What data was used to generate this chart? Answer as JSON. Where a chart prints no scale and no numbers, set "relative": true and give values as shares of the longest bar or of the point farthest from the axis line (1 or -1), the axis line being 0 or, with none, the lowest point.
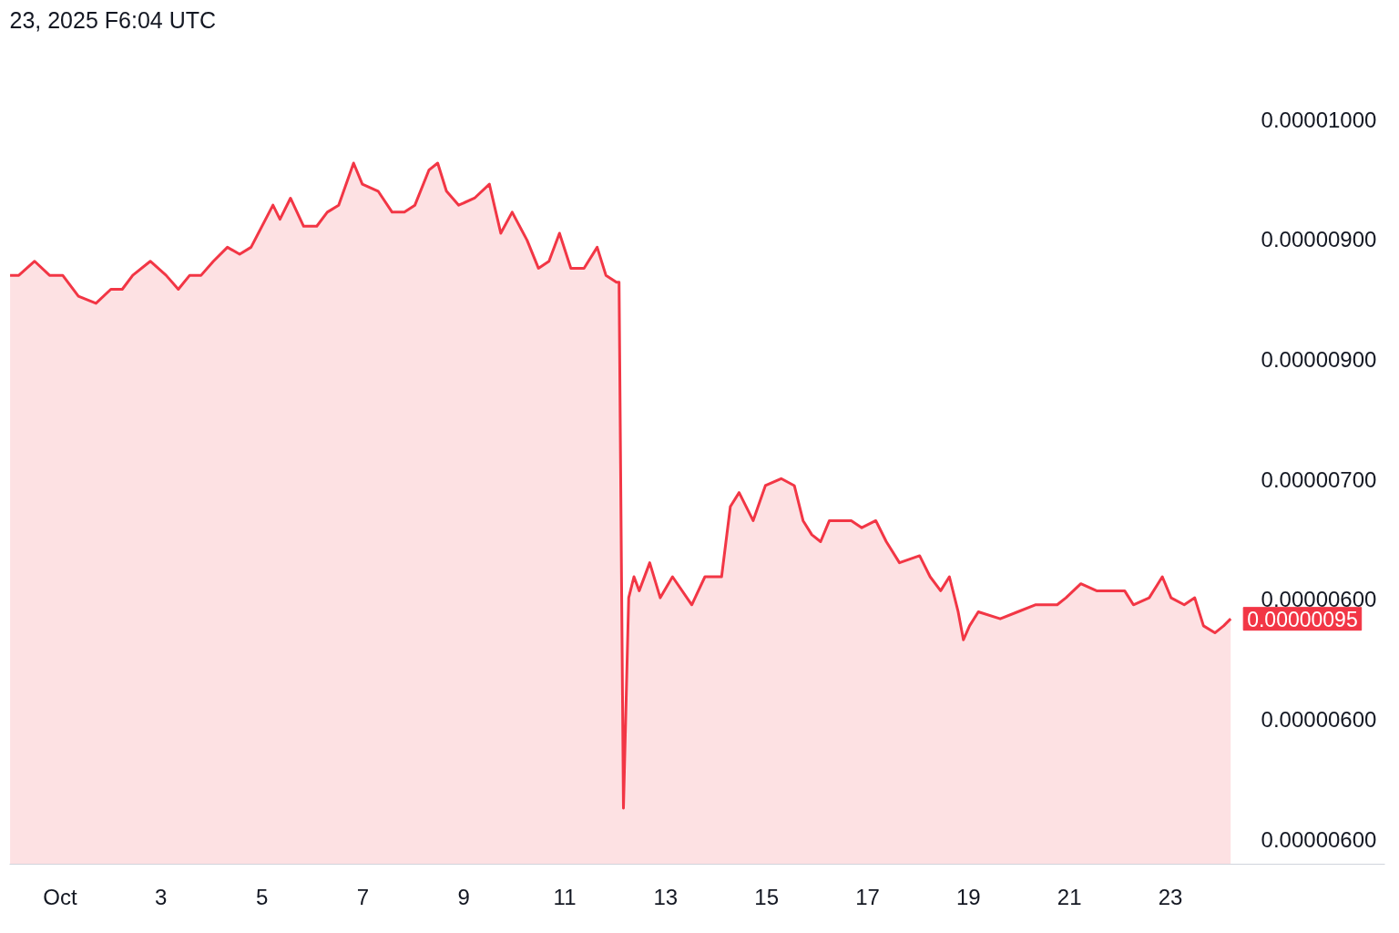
{
  "chart_data": {
    "type": "area",
    "relative": true,
    "title": "23, 2025 F6:04 UTC",
    "x": [
      "2025-09-30T00:15",
      "2025-09-30T04:25",
      "2025-09-30T11:55",
      "2025-09-30T19:00",
      "2025-10-01T01:15",
      "2025-10-01T08:45",
      "2025-10-01T17:05",
      "2025-10-02T00:10",
      "2025-10-02T05:35",
      "2025-10-02T10:35",
      "2025-10-02T18:55",
      "2025-10-03T02:25",
      "2025-10-03T08:15",
      "2025-10-03T13:40",
      "2025-10-03T19:05",
      "2025-10-04T00:55",
      "2025-10-04T07:35",
      "2025-10-04T13:25",
      "2025-10-04T18:50",
      "2025-10-05T05:15",
      "2025-10-05T08:35",
      "2025-10-05T13:35",
      "2025-10-05T19:50",
      "2025-10-06T02:05",
      "2025-10-06T07:05",
      "2025-10-06T12:30",
      "2025-10-06T19:35",
      "2025-10-06T23:45",
      "2025-10-07T07:15",
      "2025-10-07T13:55",
      "2025-10-07T19:45",
      "2025-10-08T00:45",
      "2025-10-08T07:25",
      "2025-10-08T11:35",
      "2025-10-08T15:45",
      "2025-10-08T21:35",
      "2025-10-09T05:05",
      "2025-10-09T12:10",
      "2025-10-09T17:35",
      "2025-10-09T23:00",
      "2025-10-10T06:05",
      "2025-10-10T11:30",
      "2025-10-10T16:30",
      "2025-10-10T21:30",
      "2025-10-11T02:55",
      "2025-10-11T09:10",
      "2025-10-11T15:25",
      "2025-10-11T19:35",
      "2025-10-12T00:35",
      "2025-10-12T01:50",
      "2025-10-12T03:55",
      "2025-10-12T06:25",
      "2025-10-12T08:55",
      "2025-10-12T11:25",
      "2025-10-12T16:25",
      "2025-10-12T21:25",
      "2025-10-13T03:15",
      "2025-10-13T12:25",
      "2025-10-13T18:40",
      "2025-10-14T02:35",
      "2025-10-14T06:45",
      "2025-10-14T10:55",
      "2025-10-14T17:35",
      "2025-10-14T23:25",
      "2025-10-15T06:55",
      "2025-10-15T13:10",
      "2025-10-15T17:20",
      "2025-10-15T21:30",
      "2025-10-16T01:40",
      "2025-10-16T05:50",
      "2025-10-16T11:15",
      "2025-10-16T16:15",
      "2025-10-16T21:15",
      "2025-10-17T03:55",
      "2025-10-17T08:55",
      "2025-10-17T15:10",
      "2025-10-18T00:45",
      "2025-10-18T05:45",
      "2025-10-18T10:45",
      "2025-10-18T14:55",
      "2025-10-18T19:05",
      "2025-10-18T21:35",
      "2025-10-19T00:30",
      "2025-10-19T04:40",
      "2025-10-19T15:05",
      "2025-10-19T23:25",
      "2025-10-20T07:45",
      "2025-10-20T18:10",
      "2025-10-20T22:20",
      "2025-10-21T05:25",
      "2025-10-21T12:55",
      "2025-10-21T21:15",
      "2025-10-22T02:15",
      "2025-10-22T06:25",
      "2025-10-22T13:55",
      "2025-10-22T18:05",
      "2025-10-22T20:10",
      "2025-10-23T00:20",
      "2025-10-23T06:35",
      "2025-10-23T11:35",
      "2025-10-23T15:45",
      "2025-10-23T21:10",
      "2025-10-24T01:20",
      "2025-10-24T04:40"
    ],
    "series": [
      {
        "color": "#f23645",
        "values": [
          0.84,
          0.84,
          0.86,
          0.84,
          0.84,
          0.81,
          0.8,
          0.82,
          0.82,
          0.84,
          0.86,
          0.84,
          0.82,
          0.84,
          0.84,
          0.86,
          0.88,
          0.87,
          0.88,
          0.94,
          0.92,
          0.95,
          0.91,
          0.91,
          0.93,
          0.94,
          1,
          0.97,
          0.96,
          0.93,
          0.93,
          0.94,
          0.99,
          1,
          0.96,
          0.94,
          0.95,
          0.97,
          0.9,
          0.93,
          0.89,
          0.85,
          0.86,
          0.9,
          0.85,
          0.85,
          0.88,
          0.84,
          0.83,
          0.83,
          0.08,
          0.38,
          0.41,
          0.39,
          0.43,
          0.38,
          0.41,
          0.37,
          0.41,
          0.41,
          0.51,
          0.53,
          0.49,
          0.54,
          0.55,
          0.54,
          0.49,
          0.47,
          0.46,
          0.49,
          0.49,
          0.49,
          0.48,
          0.49,
          0.46,
          0.43,
          0.44,
          0.41,
          0.39,
          0.41,
          0.36,
          0.32,
          0.34,
          0.36,
          0.35,
          0.36,
          0.37,
          0.37,
          0.38,
          0.4,
          0.39,
          0.39,
          0.39,
          0.37,
          0.38,
          0.4,
          0.41,
          0.38,
          0.37,
          0.38,
          0.34,
          0.33,
          0.34,
          0.35
        ]
      }
    ],
    "xlim": [
      "2025-09-30T00:00",
      "2025-10-27T06:00"
    ],
    "xticks": [
      {
        "value": "2025-10-01",
        "label": "Oct"
      },
      {
        "value": "2025-10-03",
        "label": "3"
      },
      {
        "value": "2025-10-05",
        "label": "5"
      },
      {
        "value": "2025-10-07",
        "label": "7"
      },
      {
        "value": "2025-10-09",
        "label": "9"
      },
      {
        "value": "2025-10-11",
        "label": "11"
      },
      {
        "value": "2025-10-13",
        "label": "13"
      },
      {
        "value": "2025-10-15",
        "label": "15"
      },
      {
        "value": "2025-10-17",
        "label": "17"
      },
      {
        "value": "2025-10-19",
        "label": "19"
      },
      {
        "value": "2025-10-21",
        "label": "21"
      },
      {
        "value": "2025-10-23",
        "label": "23"
      }
    ],
    "annotations": [
      "0.00001000",
      "0.00000900",
      "0.00000900",
      "0.00000700",
      "0.00000600",
      "0.00000600",
      "0.00000600",
      {
        "text": "0.00000095",
        "x": "2025-10-24T04:40",
        "y": 0.35
      }
    ],
    "grid": false
  }
}
